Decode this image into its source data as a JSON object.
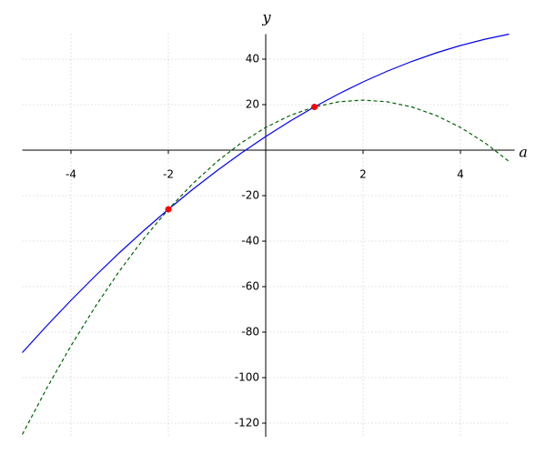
{
  "chart_data": {
    "type": "line",
    "x_label": "a",
    "y_label": "y",
    "x": [
      -5,
      -4.5,
      -4,
      -3.5,
      -3,
      -2.5,
      -2,
      -1.5,
      -1,
      -0.5,
      0,
      0.5,
      1,
      1.5,
      2,
      2.5,
      3,
      3.5,
      4,
      4.5,
      5
    ],
    "series": [
      {
        "color": "#0000ff",
        "dash": false,
        "values": [
          -89,
          -77.25,
          -66,
          -55.25,
          -45,
          -35.25,
          -26,
          -17.25,
          -9,
          -1.25,
          6,
          12.75,
          19,
          24.75,
          30,
          34.75,
          39,
          42.75,
          46,
          48.75,
          51
        ]
      },
      {
        "color": "#006400",
        "dash": true,
        "values": [
          -125,
          -104.75,
          -86,
          -68.75,
          -53,
          -38.75,
          -26,
          -14.75,
          -5,
          3.25,
          10,
          15.25,
          19,
          21.25,
          22,
          21.25,
          19,
          15.25,
          10,
          3.25,
          -5
        ]
      }
    ],
    "points": {
      "color": "#ff0000",
      "x": [
        -2,
        1
      ],
      "values": [
        -26,
        19
      ]
    },
    "xlim": [
      -5,
      5
    ],
    "ylim": [
      -126,
      51
    ],
    "xticks": [
      -4,
      -2,
      2,
      4
    ],
    "yticks": [
      40,
      20,
      -20,
      -40,
      -60,
      -80,
      -100,
      -120
    ],
    "grid": true
  }
}
